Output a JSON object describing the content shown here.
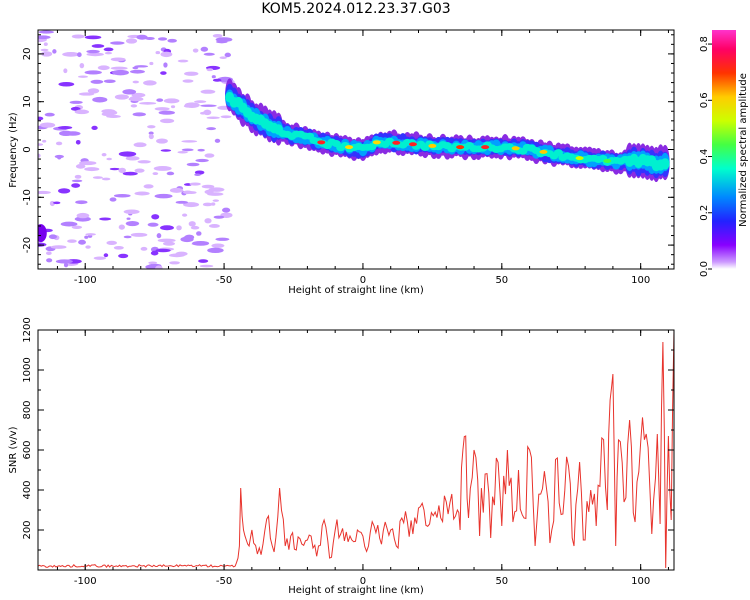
{
  "title": "KOM5.2024.012.23.37.G03",
  "chart_data": [
    {
      "type": "heatmap",
      "title": "KOM5.2024.012.23.37.G03",
      "xlabel": "Height of straight line (km)",
      "ylabel": "Frequency (Hz)",
      "xlim": [
        -117,
        112
      ],
      "ylim": [
        -25,
        25
      ],
      "xticks": [
        -100,
        -50,
        0,
        50,
        100
      ],
      "yticks": [
        -20,
        -10,
        0,
        10,
        20
      ],
      "tick_labels_x": [
        "-100",
        "-50",
        "0",
        "50",
        "100"
      ],
      "tick_labels_y": [
        "-20",
        "-10",
        "0",
        "10",
        "20"
      ],
      "colorbar": {
        "label": "Normalized spectral amplitude",
        "range": [
          0.0,
          0.85
        ],
        "ticks": [
          "0.0",
          "0.2",
          "0.4",
          "0.6",
          "0.8"
        ],
        "tick_values": [
          0.0,
          0.2,
          0.4,
          0.6,
          0.8
        ],
        "colormap": "rainbow (violet to red to magenta)"
      },
      "signal_track": {
        "x": [
          -48,
          -40,
          -33,
          -25,
          -20,
          -15,
          -10,
          -5,
          0,
          5,
          10,
          20,
          30,
          40,
          50,
          60,
          70,
          80,
          90,
          100,
          106,
          110
        ],
        "y": [
          11,
          7,
          4.5,
          3,
          2.5,
          1.5,
          1,
          0.5,
          0,
          1.5,
          1.5,
          1,
          0.5,
          0.5,
          0.5,
          0,
          -1,
          -2,
          -2.5,
          -2.5,
          -3,
          -3
        ]
      },
      "noise_region": {
        "x_range": [
          -117,
          -48
        ],
        "y_range": [
          -25,
          25
        ]
      }
    },
    {
      "type": "line",
      "xlabel": "Height of straight line (km)",
      "ylabel": "SNR (v/v)",
      "xlim": [
        -117,
        112
      ],
      "ylim": [
        0,
        1200
      ],
      "xticks": [
        -100,
        -50,
        0,
        50,
        100
      ],
      "yticks": [
        200,
        400,
        600,
        800,
        1000,
        1200
      ],
      "tick_labels_x": [
        "-100",
        "-50",
        "0",
        "50",
        "100"
      ],
      "tick_labels_y": [
        "200",
        "400",
        "600",
        "800",
        "1000",
        "1200"
      ],
      "color": "#e8332c",
      "series": [
        {
          "x": [
            -117,
            -110,
            -100,
            -90,
            -80,
            -70,
            -60,
            -50,
            -46,
            -45,
            -44.5,
            -44,
            -43,
            -42,
            -41,
            -40,
            -38,
            -36,
            -34,
            -32,
            -30,
            -28,
            -26,
            -24,
            -22,
            -20,
            -18,
            -16,
            -14,
            -12,
            -10,
            -8,
            -6,
            -4,
            -2,
            0,
            2,
            4,
            6,
            8,
            10,
            12,
            14,
            16,
            18,
            20,
            22,
            24,
            26,
            28,
            30,
            32,
            34,
            35,
            36,
            37,
            38,
            40,
            42,
            44,
            46,
            48,
            50,
            52,
            54,
            56,
            58,
            60,
            62,
            64,
            66,
            68,
            70,
            72,
            74,
            76,
            78,
            80,
            82,
            84,
            86,
            88,
            89,
            90,
            91,
            92,
            94,
            96,
            98,
            100,
            102,
            104,
            106,
            107,
            108,
            109,
            110,
            111,
            112
          ],
          "values": [
            20,
            18,
            22,
            19,
            21,
            20,
            22,
            18,
            20,
            60,
            120,
            410,
            200,
            150,
            120,
            200,
            80,
            130,
            270,
            90,
            410,
            120,
            170,
            100,
            130,
            150,
            110,
            120,
            250,
            60,
            200,
            180,
            190,
            150,
            200,
            170,
            120,
            220,
            160,
            240,
            200,
            120,
            260,
            240,
            180,
            310,
            300,
            230,
            290,
            260,
            340,
            380,
            300,
            200,
            600,
            670,
            260,
            600,
            170,
            480,
            160,
            560,
            220,
            600,
            240,
            500,
            260,
            600,
            120,
            380,
            420,
            200,
            560,
            280,
            520,
            120,
            540,
            150,
            400,
            220,
            660,
            300,
            850,
            980,
            120,
            650,
            340,
            750,
            240,
            640,
            680,
            180,
            680,
            230,
            1140,
            10,
            670,
            250,
            1200
          ]
        }
      ]
    }
  ]
}
